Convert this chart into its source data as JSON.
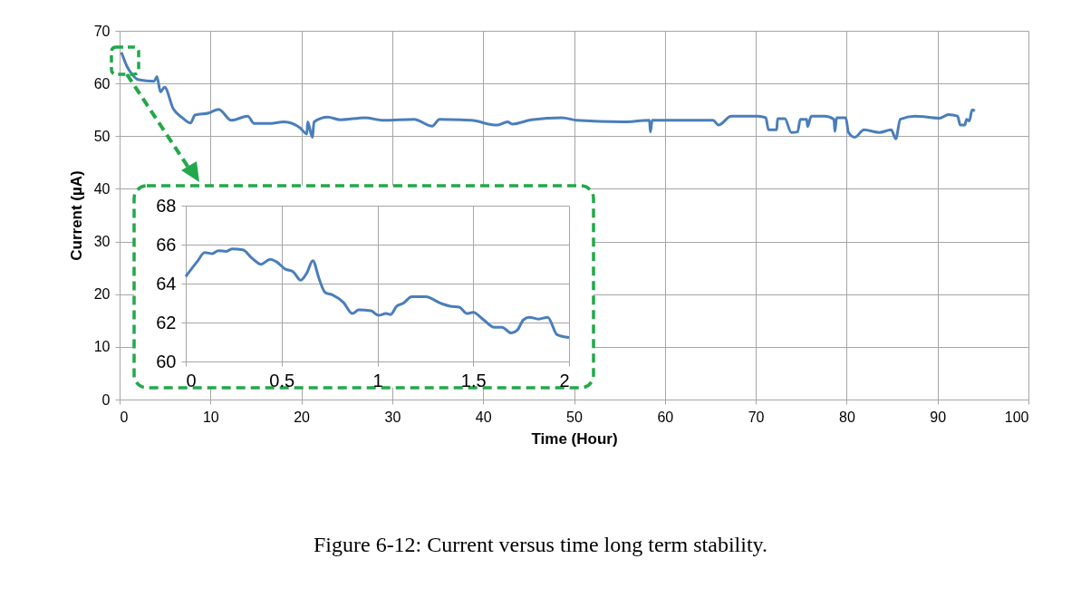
{
  "chart_data": [
    {
      "type": "line",
      "xlabel": "Time (Hour)",
      "ylabel": "Current (µA)",
      "color": "#4a7ebb",
      "xlim": [
        0,
        100
      ],
      "xticks": [
        0,
        10,
        20,
        30,
        40,
        50,
        60,
        70,
        80,
        90,
        100
      ],
      "ylim": [
        0,
        70
      ],
      "yticks": [
        0,
        10,
        20,
        30,
        40,
        50,
        60,
        70
      ],
      "grid": true,
      "annotations": [
        "Figure 6-12: Current versus time long term stability."
      ],
      "x": [
        0.2,
        0.8,
        1.1,
        2.1,
        3.8,
        4.1,
        4.5,
        4.95,
        5.9,
        6.9,
        7.8,
        8.3,
        9.8,
        10.9,
        12.3,
        14.1,
        14.8,
        16.4,
        18.1,
        19.9,
        20.6,
        20.7,
        21.2,
        21.4,
        22.9,
        24.3,
        27.0,
        29.0,
        32.4,
        34.4,
        35.2,
        38.7,
        41.5,
        42.7,
        43.2,
        45.3,
        48.7,
        50.3,
        55.3,
        58.3,
        58.4,
        58.6,
        61.9,
        65.3,
        65.9,
        67.3,
        70.2,
        71.1,
        71.4,
        72.3,
        72.4,
        73.2,
        73.9,
        74.6,
        74.9,
        75.6,
        75.7,
        76.1,
        77.6,
        78.6,
        78.7,
        78.9,
        79.9,
        80.2,
        80.9,
        81.9,
        83.6,
        84.9,
        85.4,
        85.9,
        87.5,
        90.2,
        91.2,
        92.2,
        92.5,
        93.0,
        93.2,
        93.5,
        93.8,
        94.1
      ],
      "values": [
        65.9,
        63.3,
        62.4,
        60.7,
        60.4,
        61.3,
        58.4,
        59.3,
        55.2,
        53.5,
        52.5,
        54.0,
        54.4,
        55.1,
        53.0,
        53.8,
        52.4,
        52.4,
        52.7,
        51.5,
        50.4,
        52.7,
        49.8,
        52.7,
        53.6,
        53.1,
        53.5,
        53.0,
        53.2,
        51.9,
        53.2,
        53.0,
        52.1,
        52.7,
        52.3,
        53.1,
        53.5,
        53.0,
        52.7,
        53.0,
        50.8,
        53.0,
        53.0,
        53.0,
        52.1,
        53.8,
        53.8,
        53.5,
        51.2,
        51.2,
        53.3,
        53.3,
        50.7,
        50.8,
        53.2,
        53.2,
        51.8,
        53.8,
        53.8,
        53.2,
        50.9,
        53.5,
        53.5,
        50.7,
        49.8,
        51.2,
        50.7,
        51.2,
        49.5,
        53.2,
        53.8,
        53.4,
        54.1,
        53.8,
        52.1,
        52.1,
        53.2,
        52.9,
        55.0,
        54.8
      ]
    },
    {
      "type": "line",
      "color": "#4a7ebb",
      "xlim": [
        0,
        2
      ],
      "xticks": [
        0,
        0.5,
        1,
        1.5,
        2
      ],
      "ylim": [
        60,
        68
      ],
      "yticks": [
        60,
        62,
        64,
        66,
        68
      ],
      "grid": true,
      "x": [
        0,
        0.059,
        0.099,
        0.139,
        0.17,
        0.21,
        0.242,
        0.298,
        0.345,
        0.393,
        0.441,
        0.473,
        0.52,
        0.56,
        0.6,
        0.632,
        0.663,
        0.695,
        0.727,
        0.767,
        0.823,
        0.87,
        0.902,
        0.966,
        1.006,
        1.045,
        1.069,
        1.101,
        1.133,
        1.18,
        1.252,
        1.332,
        1.379,
        1.427,
        1.467,
        1.499,
        1.554,
        1.61,
        1.65,
        1.698,
        1.73,
        1.762,
        1.793,
        1.841,
        1.889,
        1.937,
        2.0
      ],
      "values": [
        64.36,
        65.12,
        65.59,
        65.54,
        65.69,
        65.65,
        65.78,
        65.73,
        65.31,
        64.99,
        65.25,
        65.12,
        64.74,
        64.61,
        64.17,
        64.55,
        65.18,
        64.27,
        63.55,
        63.41,
        63.03,
        62.46,
        62.65,
        62.6,
        62.37,
        62.46,
        62.41,
        62.84,
        62.98,
        63.32,
        63.32,
        62.98,
        62.84,
        62.79,
        62.46,
        62.52,
        62.14,
        61.76,
        61.76,
        61.46,
        61.61,
        62.14,
        62.27,
        62.18,
        62.27,
        61.38,
        61.23
      ]
    }
  ]
}
